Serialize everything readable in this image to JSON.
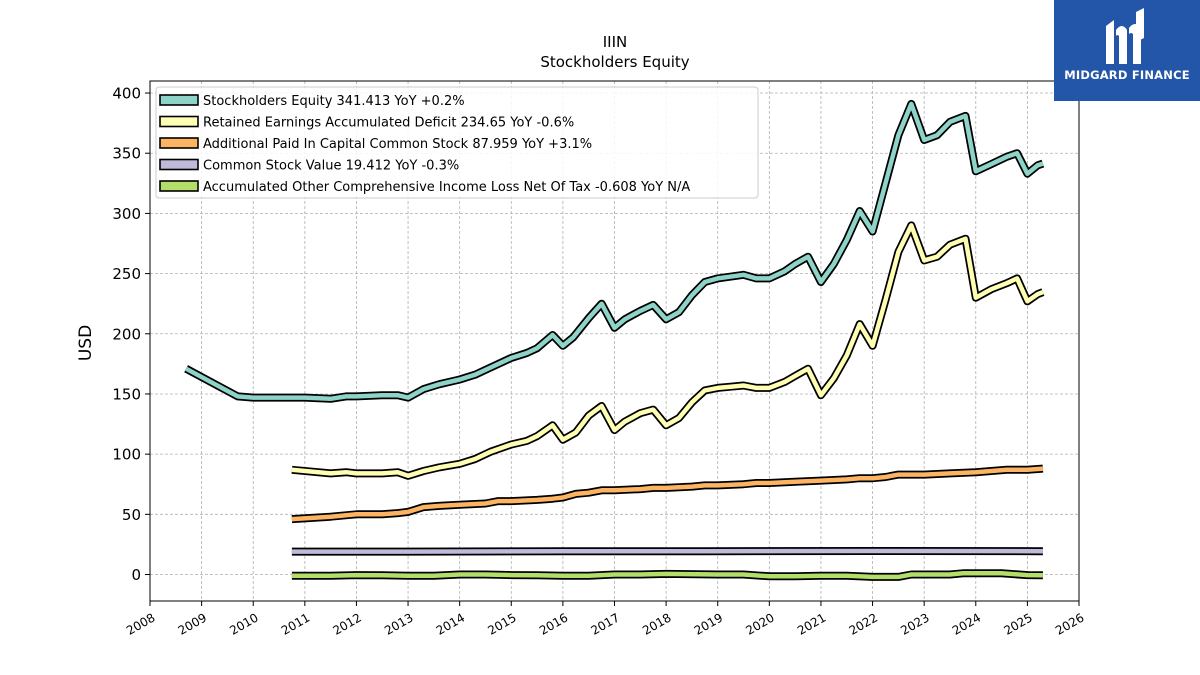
{
  "brand": {
    "name": "MIDGARD FINANCE",
    "bg": "#2356a8"
  },
  "chart_data": {
    "type": "line",
    "title": "IIIN",
    "subtitle": "Stockholders  Equity",
    "ylabel": "USD",
    "xlim": [
      2008.0,
      2026.0
    ],
    "ylim": [
      -22,
      410
    ],
    "xticks": [
      2008,
      2009,
      2010,
      2011,
      2012,
      2013,
      2014,
      2015,
      2016,
      2017,
      2018,
      2019,
      2020,
      2021,
      2022,
      2023,
      2024,
      2025,
      2026
    ],
    "yticks": [
      0,
      50,
      100,
      150,
      200,
      250,
      300,
      350,
      400
    ],
    "grid": true,
    "legend_position": "top-left",
    "series": [
      {
        "name": "Stockholders Equity  341.413 YoY +0.2%",
        "color": "#8dd3c7",
        "points": [
          [
            2008.7,
            171
          ],
          [
            2009.7,
            148
          ],
          [
            2010.0,
            147
          ],
          [
            2010.5,
            147
          ],
          [
            2011.0,
            147
          ],
          [
            2011.5,
            146
          ],
          [
            2011.8,
            148
          ],
          [
            2012.0,
            148
          ],
          [
            2012.5,
            149
          ],
          [
            2012.8,
            149
          ],
          [
            2013.0,
            147
          ],
          [
            2013.3,
            154
          ],
          [
            2013.6,
            158
          ],
          [
            2014.0,
            162
          ],
          [
            2014.3,
            166
          ],
          [
            2014.6,
            172
          ],
          [
            2015.0,
            180
          ],
          [
            2015.3,
            184
          ],
          [
            2015.5,
            188
          ],
          [
            2015.8,
            199
          ],
          [
            2016.0,
            190
          ],
          [
            2016.2,
            197
          ],
          [
            2016.5,
            213
          ],
          [
            2016.75,
            225
          ],
          [
            2017.0,
            205
          ],
          [
            2017.2,
            212
          ],
          [
            2017.5,
            219
          ],
          [
            2017.75,
            224
          ],
          [
            2018.0,
            212
          ],
          [
            2018.25,
            218
          ],
          [
            2018.5,
            232
          ],
          [
            2018.75,
            243
          ],
          [
            2019.0,
            246
          ],
          [
            2019.5,
            249
          ],
          [
            2019.75,
            246
          ],
          [
            2020.0,
            246
          ],
          [
            2020.3,
            252
          ],
          [
            2020.5,
            258
          ],
          [
            2020.75,
            264
          ],
          [
            2021.0,
            243
          ],
          [
            2021.25,
            258
          ],
          [
            2021.5,
            278
          ],
          [
            2021.75,
            302
          ],
          [
            2022.0,
            285
          ],
          [
            2022.25,
            325
          ],
          [
            2022.5,
            365
          ],
          [
            2022.75,
            391
          ],
          [
            2023.0,
            361
          ],
          [
            2023.25,
            365
          ],
          [
            2023.5,
            376
          ],
          [
            2023.8,
            381
          ],
          [
            2024.0,
            335
          ],
          [
            2024.3,
            341
          ],
          [
            2024.6,
            347
          ],
          [
            2024.8,
            350
          ],
          [
            2025.0,
            333
          ],
          [
            2025.2,
            340
          ],
          [
            2025.3,
            341.4
          ]
        ]
      },
      {
        "name": "Retained Earnings Accumulated Deficit  234.65 YoY -0.6%",
        "color": "#ffffb3",
        "points": [
          [
            2010.75,
            87
          ],
          [
            2011.5,
            84
          ],
          [
            2011.8,
            85
          ],
          [
            2012.0,
            84
          ],
          [
            2012.5,
            84
          ],
          [
            2012.8,
            85
          ],
          [
            2013.0,
            82
          ],
          [
            2013.3,
            86
          ],
          [
            2013.6,
            89
          ],
          [
            2014.0,
            92
          ],
          [
            2014.3,
            96
          ],
          [
            2014.6,
            102
          ],
          [
            2015.0,
            108
          ],
          [
            2015.3,
            111
          ],
          [
            2015.5,
            115
          ],
          [
            2015.8,
            124
          ],
          [
            2016.0,
            112
          ],
          [
            2016.25,
            118
          ],
          [
            2016.5,
            132
          ],
          [
            2016.75,
            140
          ],
          [
            2017.0,
            120
          ],
          [
            2017.2,
            127
          ],
          [
            2017.5,
            134
          ],
          [
            2017.75,
            137
          ],
          [
            2018.0,
            124
          ],
          [
            2018.25,
            130
          ],
          [
            2018.5,
            143
          ],
          [
            2018.75,
            153
          ],
          [
            2019.0,
            155
          ],
          [
            2019.25,
            156
          ],
          [
            2019.5,
            157
          ],
          [
            2019.75,
            155
          ],
          [
            2020.0,
            155
          ],
          [
            2020.3,
            160
          ],
          [
            2020.5,
            165
          ],
          [
            2020.75,
            171
          ],
          [
            2021.0,
            149
          ],
          [
            2021.25,
            163
          ],
          [
            2021.5,
            182
          ],
          [
            2021.75,
            208
          ],
          [
            2022.0,
            190
          ],
          [
            2022.25,
            228
          ],
          [
            2022.5,
            268
          ],
          [
            2022.75,
            290
          ],
          [
            2023.0,
            261
          ],
          [
            2023.25,
            264
          ],
          [
            2023.5,
            274
          ],
          [
            2023.8,
            279
          ],
          [
            2024.0,
            230
          ],
          [
            2024.3,
            237
          ],
          [
            2024.6,
            242
          ],
          [
            2024.8,
            246
          ],
          [
            2025.0,
            227
          ],
          [
            2025.2,
            233
          ],
          [
            2025.3,
            234.65
          ]
        ]
      },
      {
        "name": "Additional Paid In Capital Common Stock  87.959 YoY +3.1%",
        "color": "#fdb462",
        "points": [
          [
            2010.75,
            46
          ],
          [
            2011.5,
            48
          ],
          [
            2012.0,
            50
          ],
          [
            2012.5,
            50
          ],
          [
            2012.8,
            51
          ],
          [
            2013.0,
            52
          ],
          [
            2013.3,
            56
          ],
          [
            2013.6,
            57
          ],
          [
            2014.0,
            58
          ],
          [
            2014.5,
            59
          ],
          [
            2014.75,
            61
          ],
          [
            2015.0,
            61
          ],
          [
            2015.5,
            62
          ],
          [
            2015.8,
            63
          ],
          [
            2016.0,
            64
          ],
          [
            2016.25,
            67
          ],
          [
            2016.5,
            68
          ],
          [
            2016.75,
            70
          ],
          [
            2017.0,
            70
          ],
          [
            2017.5,
            71
          ],
          [
            2017.75,
            72
          ],
          [
            2018.0,
            72
          ],
          [
            2018.5,
            73
          ],
          [
            2018.75,
            74
          ],
          [
            2019.0,
            74
          ],
          [
            2019.5,
            75
          ],
          [
            2019.75,
            76
          ],
          [
            2020.0,
            76
          ],
          [
            2020.5,
            77
          ],
          [
            2021.0,
            78
          ],
          [
            2021.5,
            79
          ],
          [
            2021.75,
            80
          ],
          [
            2022.0,
            80
          ],
          [
            2022.25,
            81
          ],
          [
            2022.5,
            83
          ],
          [
            2022.75,
            83
          ],
          [
            2023.0,
            83
          ],
          [
            2023.5,
            84
          ],
          [
            2024.0,
            85
          ],
          [
            2024.3,
            86
          ],
          [
            2024.6,
            87
          ],
          [
            2024.8,
            87
          ],
          [
            2025.0,
            87
          ],
          [
            2025.3,
            87.959
          ]
        ]
      },
      {
        "name": "Common Stock Value  19.412 YoY -0.3%",
        "color": "#bebada",
        "points": [
          [
            2010.75,
            19
          ],
          [
            2013.0,
            19
          ],
          [
            2016.0,
            19.3
          ],
          [
            2018.75,
            19.4
          ],
          [
            2022.0,
            19.5
          ],
          [
            2025.3,
            19.412
          ]
        ]
      },
      {
        "name": "Accumulated Other Comprehensive Income Loss Net Of Tax  -0.608 YoY N/A",
        "color": "#b3de69",
        "points": [
          [
            2010.75,
            -1
          ],
          [
            2011.5,
            -1
          ],
          [
            2012.0,
            -0.5
          ],
          [
            2012.5,
            -0.6
          ],
          [
            2013.0,
            -1
          ],
          [
            2013.5,
            -1
          ],
          [
            2014.0,
            0
          ],
          [
            2014.5,
            0
          ],
          [
            2015.0,
            -0.5
          ],
          [
            2015.5,
            -0.6
          ],
          [
            2016.0,
            -1
          ],
          [
            2016.5,
            -1
          ],
          [
            2017.0,
            0
          ],
          [
            2017.5,
            0
          ],
          [
            2018.0,
            0.5
          ],
          [
            2019.0,
            0
          ],
          [
            2019.5,
            0
          ],
          [
            2020.0,
            -1.5
          ],
          [
            2020.5,
            -1.5
          ],
          [
            2021.0,
            -1
          ],
          [
            2021.5,
            -1
          ],
          [
            2022.0,
            -2
          ],
          [
            2022.5,
            -2
          ],
          [
            2022.75,
            0
          ],
          [
            2023.5,
            0
          ],
          [
            2023.75,
            1
          ],
          [
            2024.5,
            1
          ],
          [
            2025.0,
            -0.5
          ],
          [
            2025.3,
            -0.608
          ]
        ]
      }
    ]
  }
}
